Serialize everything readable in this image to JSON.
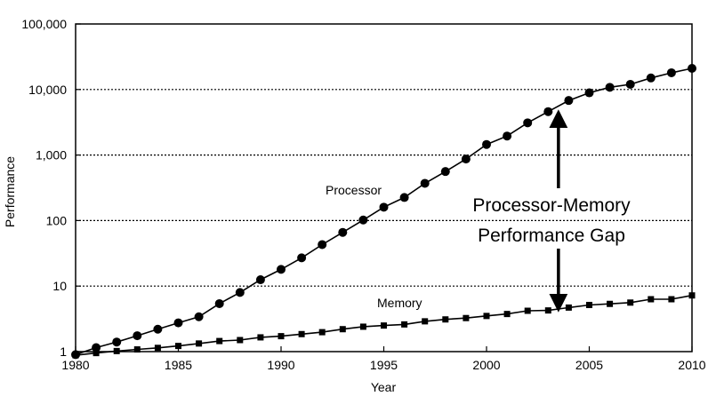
{
  "chart_data": {
    "type": "line",
    "yscale": "log",
    "title": "",
    "xlabel": "Year",
    "ylabel": "Performance",
    "xlim": [
      1980,
      2010
    ],
    "ylim": [
      1,
      100000
    ],
    "x_ticks": [
      1980,
      1985,
      1990,
      1995,
      2000,
      2005,
      2010
    ],
    "y_ticks": [
      {
        "value": 1,
        "label": "1"
      },
      {
        "value": 10,
        "label": "10"
      },
      {
        "value": 100,
        "label": "100"
      },
      {
        "value": 1000,
        "label": "1,000"
      },
      {
        "value": 10000,
        "label": "10,000"
      },
      {
        "value": 100000,
        "label": "100,000"
      }
    ],
    "gridlines_y": [
      10,
      100,
      1000,
      10000
    ],
    "x": [
      1980,
      1981,
      1982,
      1983,
      1984,
      1985,
      1986,
      1987,
      1988,
      1989,
      1990,
      1991,
      1992,
      1993,
      1994,
      1995,
      1996,
      1997,
      1998,
      1999,
      2000,
      2001,
      2002,
      2003,
      2004,
      2005,
      2006,
      2007,
      2008,
      2009,
      2010
    ],
    "series": [
      {
        "name": "Processor",
        "marker": "circle",
        "values": [
          0.9,
          1.15,
          1.4,
          1.75,
          2.2,
          2.75,
          3.4,
          5.4,
          8.0,
          12.5,
          18,
          27,
          43,
          66,
          102,
          160,
          225,
          370,
          560,
          870,
          1450,
          1950,
          3100,
          4600,
          6800,
          8900,
          10800,
          12000,
          15000,
          18000,
          21000
        ]
      },
      {
        "name": "Memory",
        "marker": "square",
        "values": [
          0.88,
          0.95,
          1.02,
          1.08,
          1.14,
          1.22,
          1.33,
          1.45,
          1.5,
          1.65,
          1.72,
          1.85,
          1.98,
          2.2,
          2.4,
          2.5,
          2.6,
          2.9,
          3.1,
          3.25,
          3.5,
          3.75,
          4.2,
          4.25,
          4.7,
          5.15,
          5.35,
          5.6,
          6.3,
          6.3,
          7.2
        ]
      }
    ],
    "annotations": {
      "gap_line1": "Processor-Memory",
      "gap_line2": "Performance Gap",
      "arrow_x": 2003.5,
      "arrow_top_value": 4600,
      "arrow_bottom_value": 4.3
    }
  }
}
